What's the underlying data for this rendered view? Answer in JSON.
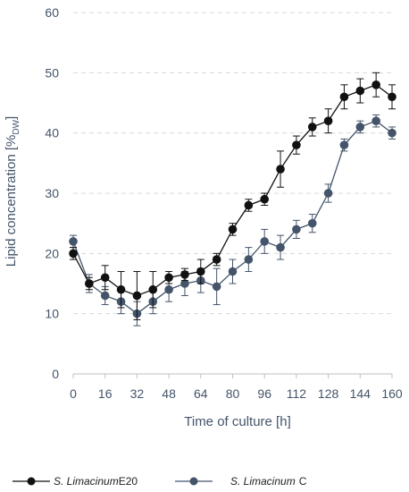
{
  "chart_data": {
    "type": "line",
    "xlabel": "Time of culture [h]",
    "ylabel": {
      "main": "Lipid concentration [%",
      "sub": "DW",
      "close": "]"
    },
    "xlim": [
      0,
      160
    ],
    "ylim": [
      0,
      60
    ],
    "xticks": [
      0,
      16,
      32,
      48,
      64,
      80,
      96,
      112,
      128,
      144,
      160
    ],
    "yticks": [
      0,
      10,
      20,
      30,
      40,
      50,
      60
    ],
    "grid": "horizontal dashed",
    "legend_position": "bottom",
    "series": [
      {
        "name": "E20",
        "legend_italic": "S. Limacinum",
        "color": "#111111",
        "x": [
          0,
          8,
          16,
          24,
          32,
          40,
          48,
          56,
          64,
          72,
          80,
          88,
          96,
          104,
          112,
          120,
          128,
          136,
          144,
          152,
          160
        ],
        "values": [
          20,
          15,
          16,
          14,
          13,
          14,
          16,
          16.5,
          17,
          19,
          24,
          28,
          29,
          34,
          38,
          41,
          42,
          46,
          47,
          48,
          46
        ],
        "errors": [
          1,
          1,
          2,
          3,
          4,
          3,
          1,
          1,
          2,
          1,
          1,
          1,
          1,
          3,
          1.5,
          1.5,
          2,
          2,
          2,
          2,
          2
        ]
      },
      {
        "name": "C",
        "legend_italic": "S. Limacinum",
        "color": "#44546a",
        "x": [
          0,
          8,
          16,
          24,
          32,
          40,
          48,
          56,
          64,
          72,
          80,
          88,
          96,
          104,
          112,
          120,
          128,
          136,
          144,
          152,
          160
        ],
        "values": [
          22,
          15,
          13,
          12,
          10,
          12,
          14,
          15,
          15.5,
          14.5,
          17,
          19,
          22,
          21,
          24,
          25,
          30,
          38,
          41,
          42,
          40
        ],
        "errors": [
          1,
          1.5,
          1.5,
          2,
          2,
          2,
          2,
          2,
          2,
          3,
          2,
          2,
          2,
          2,
          1.5,
          1.5,
          1.5,
          1,
          1,
          1,
          1
        ]
      }
    ]
  }
}
